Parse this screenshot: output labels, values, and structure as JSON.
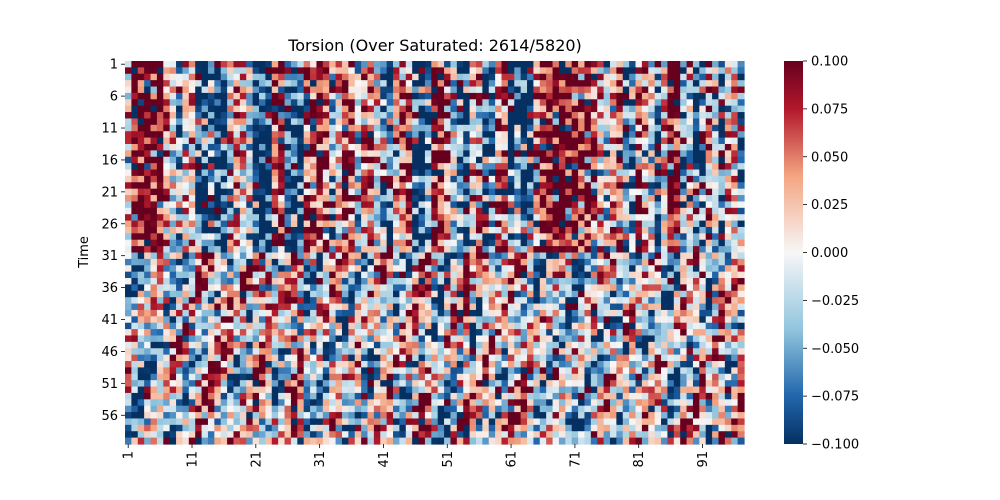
{
  "chart_data": {
    "type": "heatmap",
    "title": "Torsion (Over Saturated: 2614/5820)",
    "xlabel": "",
    "ylabel": "Time",
    "rows": 60,
    "cols": 97,
    "x_tick_labels": [
      "1",
      "11",
      "21",
      "31",
      "41",
      "51",
      "61",
      "71",
      "81",
      "91"
    ],
    "y_tick_labels": [
      "1",
      "6",
      "11",
      "16",
      "21",
      "26",
      "31",
      "36",
      "41",
      "46",
      "51",
      "56"
    ],
    "colormap": "RdBu_r",
    "vmin": -0.1,
    "vmax": 0.1,
    "colorbar_ticks": [
      "0.100",
      "0.075",
      "0.050",
      "0.025",
      "0.000",
      "−0.025",
      "−0.050",
      "−0.075",
      "−0.100"
    ],
    "colorbar_tick_values": [
      0.1,
      0.075,
      0.05,
      0.025,
      0.0,
      -0.025,
      -0.05,
      -0.075,
      -0.1
    ],
    "colors": {
      "min": "#053061",
      "low": "#2166ac",
      "mid_low": "#92c5de",
      "center": "#f7f7f7",
      "mid_high": "#f4a582",
      "high": "#b2182b",
      "max": "#67001f"
    },
    "column_bias": [
      0.2,
      0.9,
      0.9,
      0.9,
      0.9,
      0.9,
      0.4,
      0.1,
      -0.5,
      0.2,
      0.3,
      -0.7,
      -0.7,
      -0.6,
      -0.8,
      -0.8,
      -0.2,
      0.4,
      0.2,
      -0.2,
      -0.9,
      -0.9,
      -0.9,
      0.5,
      0.6,
      -0.8,
      -0.8,
      -0.8,
      0.6,
      0.7,
      0.7,
      0.6,
      -0.3,
      0.2,
      0.7,
      0.6,
      -0.2,
      0.4,
      0.6,
      0.1,
      -0.6,
      -0.7,
      0.3,
      0.5,
      0.6,
      -0.7,
      -0.8,
      -0.6,
      0.8,
      0.8,
      0.5,
      -0.2,
      -0.5,
      -0.8,
      0.3,
      0.3,
      -0.8,
      -0.6,
      0.5,
      0.5,
      -0.5,
      -0.5,
      -0.8,
      -0.8,
      0.6,
      0.7,
      0.9,
      0.9,
      0.9,
      0.9,
      0.9,
      0.8,
      0.8,
      0.6,
      0.2,
      -0.3,
      0.4,
      0.7,
      -0.7,
      -0.6,
      0.6,
      0.3,
      -0.2,
      -0.6,
      0.2,
      0.9,
      0.8,
      -0.4,
      0.3,
      -0.7,
      -0.5,
      0.4,
      -0.3,
      -0.7,
      0.2,
      0.1,
      -0.5
    ]
  }
}
